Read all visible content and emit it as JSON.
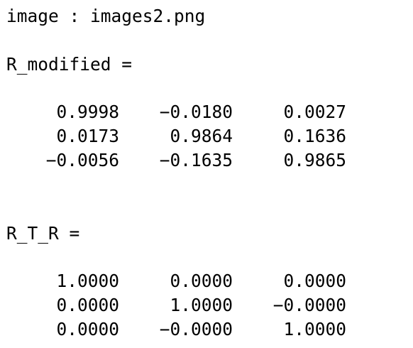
{
  "console": {
    "image_line": "image : images2.png",
    "r_modified": {
      "label": "R_modified =",
      "rows": [
        [
          "0.9998",
          "−0.0180",
          "0.0027"
        ],
        [
          "0.0173",
          "0.9864",
          "0.1636"
        ],
        [
          "−0.0056",
          "−0.1635",
          "0.9865"
        ]
      ]
    },
    "r_t_r": {
      "label": "R_T_R =",
      "rows": [
        [
          "1.0000",
          "0.0000",
          "0.0000"
        ],
        [
          "0.0000",
          "1.0000",
          "−0.0000"
        ],
        [
          "0.0000",
          "−0.0000",
          "1.0000"
        ]
      ]
    }
  }
}
